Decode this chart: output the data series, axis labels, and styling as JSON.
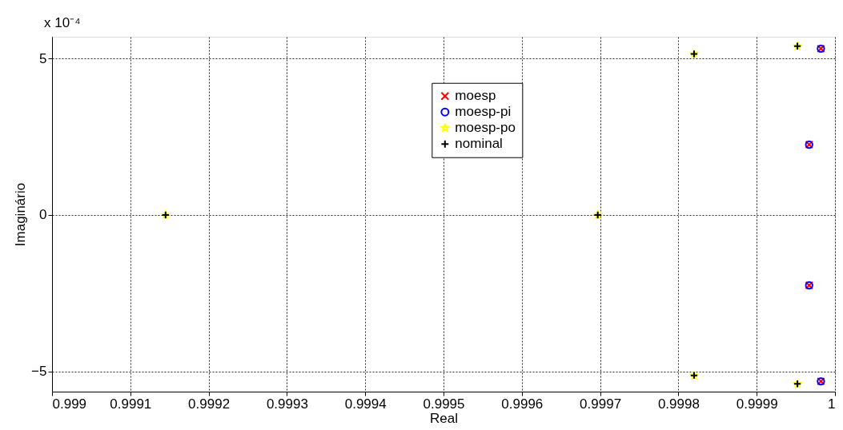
{
  "chart_data": {
    "type": "scatter",
    "xlabel": "Real",
    "ylabel": "Imaginário",
    "annotations": [
      "x 10⁻⁴"
    ],
    "xlim": [
      0.999,
      1.0
    ],
    "xticks": [
      0.999,
      0.9991,
      0.9992,
      0.9993,
      0.9994,
      0.9995,
      0.9996,
      0.9997,
      0.9998,
      0.9999,
      1
    ],
    "ylim": [
      -5.65,
      5.7
    ],
    "yticks": [
      -5,
      0,
      5
    ],
    "grid": true,
    "legend": "top",
    "series": [
      {
        "name": "moesp",
        "color": "#ff0000",
        "marker": "cross",
        "x": [
          0.999982,
          0.999967,
          0.999967,
          0.999982
        ],
        "values": [
          5.32,
          2.25,
          -2.25,
          -5.32
        ]
      },
      {
        "name": "moesp-pi",
        "color": "#0000ff",
        "marker": "circle",
        "x": [
          0.999982,
          0.999967,
          0.999967,
          0.999982
        ],
        "values": [
          5.32,
          2.25,
          -2.25,
          -5.32
        ]
      },
      {
        "name": "moesp-po",
        "color": "#ffff00",
        "marker": "star",
        "x": [
          0.999145,
          0.999697,
          0.99982,
          0.99982,
          0.999952,
          0.999952
        ],
        "values": [
          0,
          0,
          5.15,
          -5.13,
          5.4,
          -5.4
        ]
      },
      {
        "name": "nominal",
        "color": "#000000",
        "marker": "plus",
        "x": [
          0.999145,
          0.999697,
          0.99982,
          0.99982,
          0.999952,
          0.999952
        ],
        "values": [
          0,
          0,
          5.15,
          -5.13,
          5.4,
          -5.4
        ]
      }
    ]
  }
}
